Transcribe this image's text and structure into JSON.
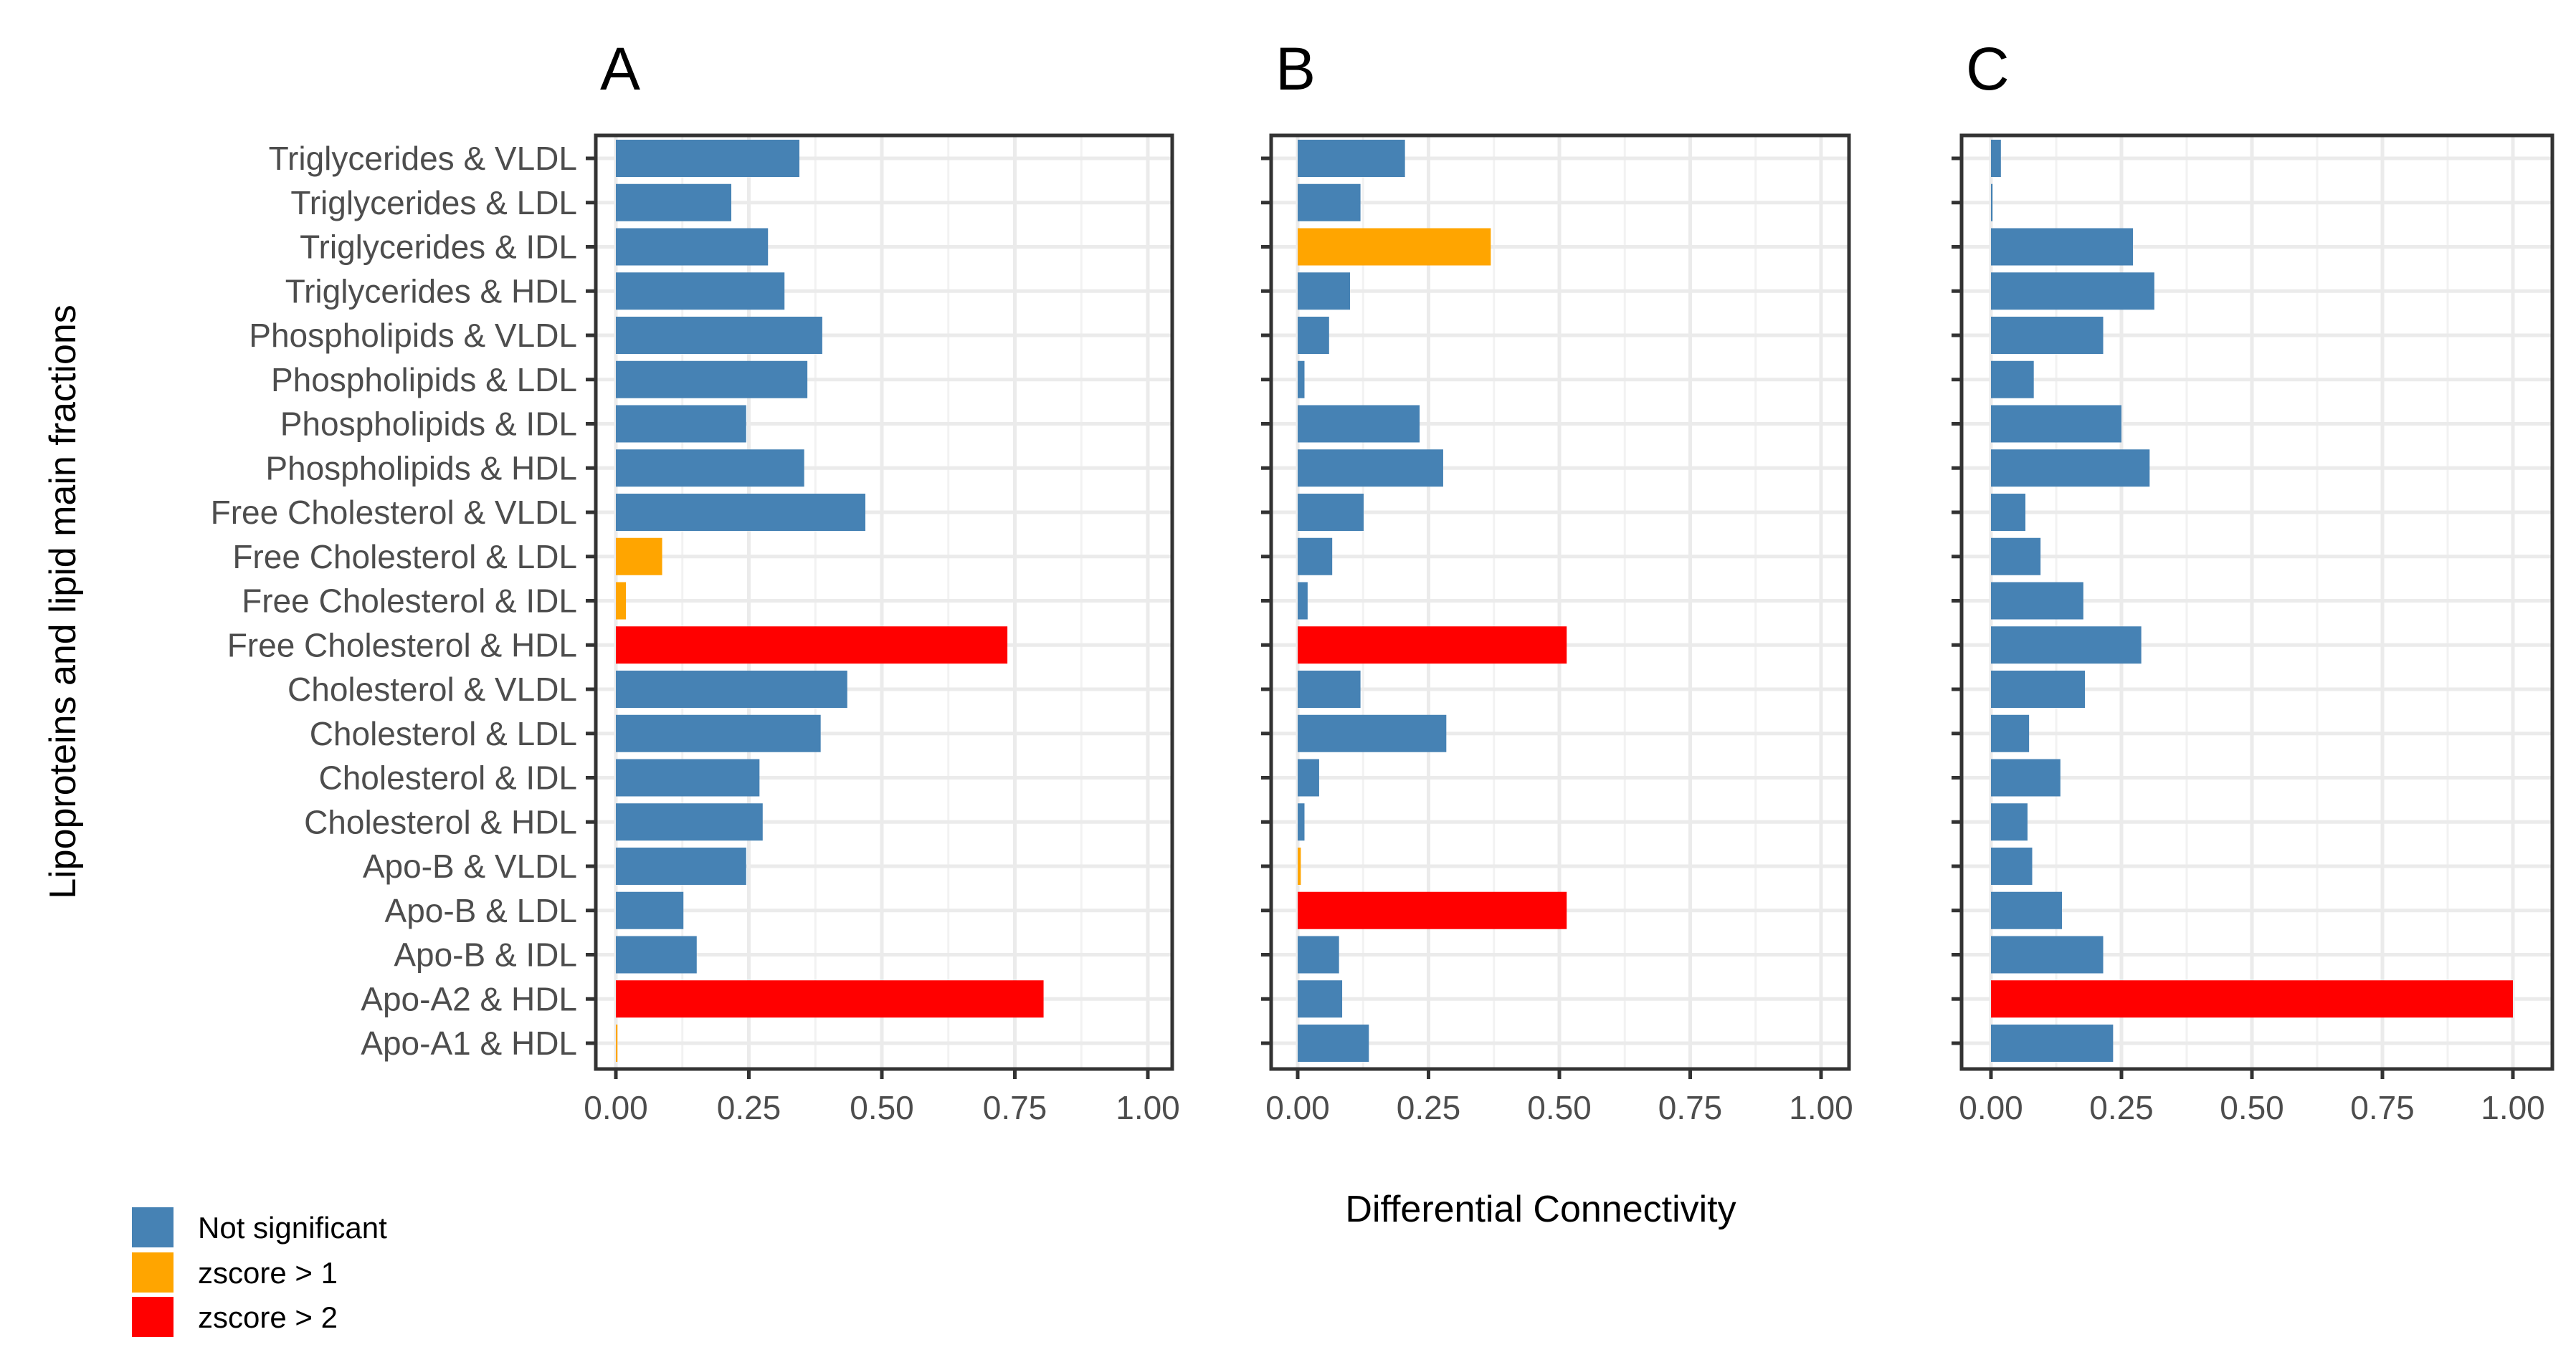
{
  "chart_data": {
    "type": "bar",
    "orientation": "horizontal",
    "xlabel": "Differential Connectivity",
    "ylabel": "Lipoproteins and lipid main fractions",
    "xlim": [
      0,
      1
    ],
    "xticks": [
      "0.00",
      "0.25",
      "0.50",
      "0.75",
      "1.00"
    ],
    "grid": true,
    "legend_position": "bottom-left",
    "legend": [
      {
        "label": "Not significant",
        "key": "ns"
      },
      {
        "label": "zscore > 1",
        "key": "z1"
      },
      {
        "label": "zscore > 2",
        "key": "z2"
      }
    ],
    "colors": {
      "ns": "#4682B4",
      "z1": "#FFA500",
      "z2": "#FF0000"
    },
    "categories": [
      "Triglycerides & VLDL",
      "Triglycerides & LDL",
      "Triglycerides & IDL",
      "Triglycerides & HDL",
      "Phospholipids & VLDL",
      "Phospholipids & LDL",
      "Phospholipids & IDL",
      "Phospholipids & HDL",
      "Free Cholesterol & VLDL",
      "Free Cholesterol & LDL",
      "Free Cholesterol & IDL",
      "Free Cholesterol & HDL",
      "Cholesterol & VLDL",
      "Cholesterol & LDL",
      "Cholesterol & IDL",
      "Cholesterol & HDL",
      "Apo-B & VLDL",
      "Apo-B & LDL",
      "Apo-B & IDL",
      "Apo-A2 & HDL",
      "Apo-A1 & HDL"
    ],
    "panels": [
      {
        "title": "A",
        "values": [
          0.345,
          0.217,
          0.286,
          0.317,
          0.388,
          0.36,
          0.245,
          0.354,
          0.469,
          0.087,
          0.019,
          0.736,
          0.435,
          0.385,
          0.27,
          0.276,
          0.245,
          0.127,
          0.152,
          0.804,
          0.003
        ],
        "groups": [
          "ns",
          "ns",
          "ns",
          "ns",
          "ns",
          "ns",
          "ns",
          "ns",
          "ns",
          "z1",
          "z1",
          "z2",
          "ns",
          "ns",
          "ns",
          "ns",
          "ns",
          "ns",
          "ns",
          "z2",
          "z1"
        ]
      },
      {
        "title": "B",
        "values": [
          0.205,
          0.12,
          0.369,
          0.1,
          0.06,
          0.013,
          0.233,
          0.278,
          0.126,
          0.066,
          0.019,
          0.514,
          0.12,
          0.284,
          0.041,
          0.013,
          0.006,
          0.514,
          0.079,
          0.085,
          0.136
        ],
        "groups": [
          "ns",
          "ns",
          "z1",
          "ns",
          "ns",
          "ns",
          "ns",
          "ns",
          "ns",
          "ns",
          "ns",
          "z2",
          "ns",
          "ns",
          "ns",
          "ns",
          "z1",
          "z2",
          "ns",
          "ns",
          "ns"
        ]
      },
      {
        "title": "C",
        "values": [
          0.019,
          0.003,
          0.272,
          0.313,
          0.215,
          0.082,
          0.25,
          0.304,
          0.066,
          0.095,
          0.177,
          0.288,
          0.18,
          0.073,
          0.133,
          0.07,
          0.079,
          0.136,
          0.215,
          1.0,
          0.234
        ],
        "groups": [
          "ns",
          "ns",
          "ns",
          "ns",
          "ns",
          "ns",
          "ns",
          "ns",
          "ns",
          "ns",
          "ns",
          "ns",
          "ns",
          "ns",
          "ns",
          "ns",
          "ns",
          "ns",
          "ns",
          "z2",
          "ns"
        ]
      }
    ]
  }
}
